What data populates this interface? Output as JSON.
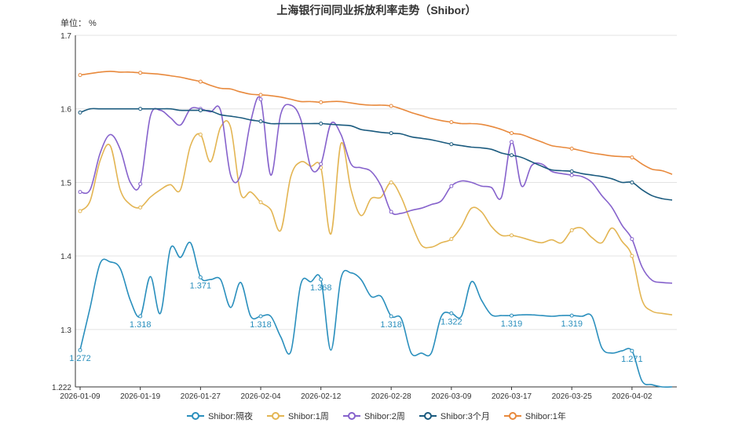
{
  "chart_data": {
    "type": "line",
    "title": "上海银行间同业拆放利率走势（Shibor）",
    "y_unit": "单位： %",
    "ylim": [
      1.222,
      1.7
    ],
    "y_ticks": [
      "1.7",
      "1.6",
      "1.5",
      "1.4",
      "1.3",
      "1.222"
    ],
    "x_tick_labels": [
      "2026-01-09",
      "2026-01-19",
      "2026-01-27",
      "2026-02-04",
      "2026-02-12",
      "2026-02-28",
      "2026-03-09",
      "2026-03-17",
      "2026-03-25",
      "2026-04-02"
    ],
    "grid": true,
    "legend_position": "bottom",
    "x": [
      "2026-01-09",
      "2026-01-12",
      "2026-01-13",
      "2026-01-14",
      "2026-01-15",
      "2026-01-16",
      "2026-01-19",
      "2026-01-20",
      "2026-01-21",
      "2026-01-22",
      "2026-01-23",
      "2026-01-26",
      "2026-01-27",
      "2026-01-28",
      "2026-01-29",
      "2026-01-30",
      "2026-02-02",
      "2026-02-03",
      "2026-02-04",
      "2026-02-05",
      "2026-02-06",
      "2026-02-09",
      "2026-02-10",
      "2026-02-11",
      "2026-02-12",
      "2026-02-13",
      "2026-02-14",
      "2026-02-24",
      "2026-02-25",
      "2026-02-26",
      "2026-02-27",
      "2026-02-28",
      "2026-03-02",
      "2026-03-03",
      "2026-03-04",
      "2026-03-05",
      "2026-03-06",
      "2026-03-09",
      "2026-03-10",
      "2026-03-11",
      "2026-03-12",
      "2026-03-13",
      "2026-03-16",
      "2026-03-17",
      "2026-03-18",
      "2026-03-19",
      "2026-03-20",
      "2026-03-23",
      "2026-03-24",
      "2026-03-25",
      "2026-03-26",
      "2026-03-27",
      "2026-03-30",
      "2026-03-31",
      "2026-04-01",
      "2026-04-02",
      "2026-04-03",
      "2026-04-07",
      "2026-04-08",
      "2026-04-09"
    ],
    "series": [
      {
        "name": "Shibor:隔夜",
        "color": "#2a8fbd",
        "values": [
          1.272,
          1.33,
          1.39,
          1.392,
          1.383,
          1.34,
          1.318,
          1.372,
          1.322,
          1.41,
          1.398,
          1.418,
          1.371,
          1.368,
          1.368,
          1.33,
          1.364,
          1.318,
          1.318,
          1.318,
          1.29,
          1.27,
          1.362,
          1.365,
          1.368,
          1.272,
          1.37,
          1.377,
          1.368,
          1.345,
          1.345,
          1.318,
          1.315,
          1.268,
          1.268,
          1.268,
          1.318,
          1.322,
          1.318,
          1.365,
          1.34,
          1.32,
          1.319,
          1.319,
          1.32,
          1.32,
          1.319,
          1.318,
          1.319,
          1.319,
          1.318,
          1.318,
          1.275,
          1.268,
          1.271,
          1.271,
          1.23,
          1.225,
          1.222,
          1.222
        ],
        "labeled_points": [
          {
            "x": "2026-01-09",
            "label": "1.272"
          },
          {
            "x": "2026-01-19",
            "label": "1.318"
          },
          {
            "x": "2026-01-27",
            "label": "1.371"
          },
          {
            "x": "2026-02-04",
            "label": "1.318"
          },
          {
            "x": "2026-02-12",
            "label": "1.368"
          },
          {
            "x": "2026-02-28",
            "label": "1.318"
          },
          {
            "x": "2026-03-09",
            "label": "1.322"
          },
          {
            "x": "2026-03-17",
            "label": "1.319"
          },
          {
            "x": "2026-03-25",
            "label": "1.319"
          },
          {
            "x": "2026-04-02",
            "label": "1.271"
          }
        ]
      },
      {
        "name": "Shibor:1周",
        "color": "#e3b553",
        "values": [
          1.461,
          1.475,
          1.53,
          1.55,
          1.49,
          1.47,
          1.466,
          1.48,
          1.49,
          1.497,
          1.49,
          1.55,
          1.565,
          1.528,
          1.575,
          1.575,
          1.485,
          1.487,
          1.473,
          1.463,
          1.435,
          1.508,
          1.528,
          1.522,
          1.52,
          1.43,
          1.553,
          1.49,
          1.455,
          1.478,
          1.48,
          1.5,
          1.48,
          1.445,
          1.415,
          1.412,
          1.418,
          1.423,
          1.44,
          1.465,
          1.46,
          1.44,
          1.428,
          1.428,
          1.425,
          1.421,
          1.418,
          1.422,
          1.418,
          1.435,
          1.438,
          1.425,
          1.418,
          1.438,
          1.42,
          1.4,
          1.34,
          1.325,
          1.322,
          1.32
        ]
      },
      {
        "name": "Shibor:2周",
        "color": "#8662cc",
        "values": [
          1.487,
          1.49,
          1.54,
          1.565,
          1.545,
          1.5,
          1.498,
          1.59,
          1.598,
          1.588,
          1.578,
          1.6,
          1.6,
          1.596,
          1.598,
          1.51,
          1.51,
          1.583,
          1.613,
          1.51,
          1.593,
          1.605,
          1.585,
          1.52,
          1.525,
          1.58,
          1.565,
          1.525,
          1.52,
          1.515,
          1.495,
          1.46,
          1.458,
          1.462,
          1.465,
          1.47,
          1.475,
          1.495,
          1.502,
          1.5,
          1.495,
          1.493,
          1.48,
          1.555,
          1.495,
          1.523,
          1.525,
          1.515,
          1.512,
          1.51,
          1.508,
          1.5,
          1.482,
          1.466,
          1.442,
          1.423,
          1.385,
          1.367,
          1.364,
          1.363
        ]
      },
      {
        "name": "Shibor:3个月",
        "color": "#1a5a7e",
        "values": [
          1.595,
          1.6,
          1.6,
          1.6,
          1.6,
          1.6,
          1.6,
          1.6,
          1.6,
          1.6,
          1.598,
          1.598,
          1.598,
          1.597,
          1.592,
          1.59,
          1.588,
          1.585,
          1.583,
          1.58,
          1.58,
          1.58,
          1.58,
          1.58,
          1.58,
          1.579,
          1.578,
          1.577,
          1.572,
          1.57,
          1.568,
          1.567,
          1.566,
          1.562,
          1.56,
          1.558,
          1.555,
          1.552,
          1.55,
          1.548,
          1.547,
          1.545,
          1.54,
          1.537,
          1.534,
          1.528,
          1.522,
          1.517,
          1.516,
          1.515,
          1.512,
          1.51,
          1.508,
          1.505,
          1.5,
          1.5,
          1.49,
          1.482,
          1.478,
          1.476
        ]
      },
      {
        "name": "Shibor:1年",
        "color": "#e8893c",
        "values": [
          1.646,
          1.648,
          1.65,
          1.651,
          1.65,
          1.65,
          1.649,
          1.648,
          1.647,
          1.645,
          1.643,
          1.64,
          1.637,
          1.632,
          1.628,
          1.627,
          1.623,
          1.62,
          1.619,
          1.618,
          1.616,
          1.613,
          1.61,
          1.61,
          1.609,
          1.61,
          1.61,
          1.608,
          1.606,
          1.605,
          1.605,
          1.604,
          1.6,
          1.595,
          1.591,
          1.587,
          1.584,
          1.582,
          1.58,
          1.58,
          1.579,
          1.576,
          1.572,
          1.567,
          1.565,
          1.56,
          1.555,
          1.55,
          1.548,
          1.546,
          1.543,
          1.54,
          1.538,
          1.536,
          1.535,
          1.534,
          1.525,
          1.518,
          1.516,
          1.511
        ]
      }
    ]
  }
}
